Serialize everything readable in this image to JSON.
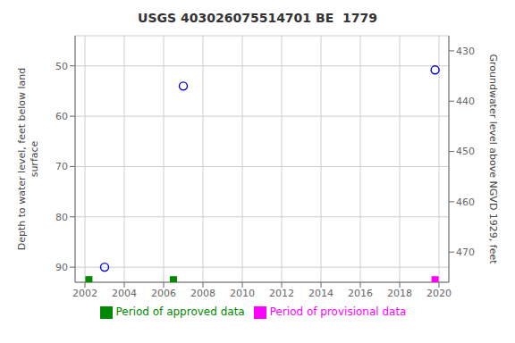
{
  "chart_data": {
    "type": "scatter",
    "title": "USGS 403026075514701 BE  1779",
    "y_label": "Depth to water level, feet below land\nsurface",
    "y2_label": "Groundwater level above NGVD 1929, feet",
    "xlim": [
      2001.5,
      2020.5
    ],
    "xticks": [
      2002,
      2004,
      2006,
      2008,
      2010,
      2012,
      2014,
      2016,
      2018,
      2020
    ],
    "ylim": [
      93,
      44
    ],
    "yticks": [
      50,
      60,
      70,
      80,
      90
    ],
    "y2lim": [
      476,
      427
    ],
    "y2ticks": [
      430,
      440,
      450,
      460,
      470
    ],
    "grid": true,
    "legend": "bottom",
    "series": [
      {
        "color": "#0000cc",
        "marker": "open_circle",
        "x": [
          2003.0,
          2007.0,
          2019.8
        ],
        "values": [
          90.0,
          54.0,
          50.8
        ]
      },
      {
        "name": "Period of approved data",
        "color": "#008800",
        "marker": "square",
        "x": [
          2002.2,
          2006.5
        ],
        "values": [
          92.5,
          92.5
        ]
      },
      {
        "name": "Period of provisional data",
        "color": "#ff00ff",
        "marker": "square",
        "x": [
          2019.8
        ],
        "values": [
          92.5
        ]
      }
    ]
  }
}
